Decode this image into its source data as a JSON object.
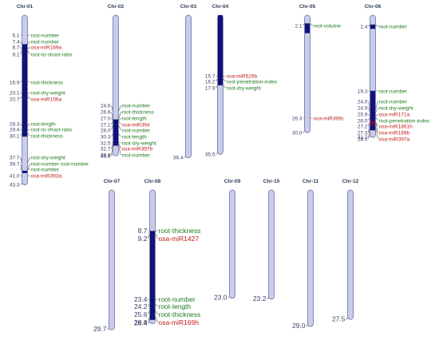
{
  "colors": {
    "background": "#ffffff",
    "chromosome": "#c9cdea",
    "chromosome_outline": "#6a70a8",
    "qtl_region": "#12127a",
    "mirna_region": "#6b0a4a",
    "trait_label": "#1e7a1e",
    "mirna_label": "#c21a1a",
    "position_text": "#3a3f6a",
    "title": "#2b3a55"
  },
  "chromosomes": [
    {
      "name": "Chr-01",
      "end_label": "43.3",
      "length": 43.3,
      "segments": [
        [
          7.4,
          31.0
        ],
        [
          39.7,
          40.3
        ]
      ],
      "markers": [
        {
          "pos": "5.1",
          "label": "root-number",
          "type": "trait"
        },
        {
          "pos": "7.4",
          "label": "root-number",
          "type": "trait"
        },
        {
          "pos": "8.7",
          "label": "osa-miR169a",
          "type": "mirna"
        },
        {
          "pos": "9.1",
          "label": "root-to-shoot-ratio",
          "type": "trait"
        },
        {
          "pos": "16.9",
          "label": "root-thickness",
          "type": "trait"
        },
        {
          "pos": "20.1",
          "label": "root-dry-weight",
          "type": "trait"
        },
        {
          "pos": "20.7",
          "label": "osa-miR156a",
          "type": "mirna"
        },
        {
          "pos": "28.3",
          "label": "root-length",
          "type": "trait"
        },
        {
          "pos": "29.4",
          "label": "root-to-shoot-ratio",
          "type": "trait"
        },
        {
          "pos": "30.1",
          "label": "root-thickness",
          "type": "trait"
        },
        {
          "pos": "37.7",
          "label": "root-dry-weight",
          "type": "trait"
        },
        {
          "pos": "39.7",
          "label": "root-number root-number",
          "type": "trait"
        },
        {
          "pos": "",
          "label": "root-number",
          "type": "trait"
        },
        {
          "pos": "41.0",
          "label": "osa-miR393a",
          "type": "mirna"
        }
      ]
    },
    {
      "name": "Chr-02",
      "end_label": "35.9",
      "length": 35.9,
      "segments": [
        [
          26.6,
          33.3
        ]
      ],
      "markers": [
        {
          "pos": "24.6",
          "label": "root-number",
          "type": "trait"
        },
        {
          "pos": "26.6",
          "label": "root-thickness",
          "type": "trait"
        },
        {
          "pos": "27.0",
          "label": "root-length",
          "type": "trait"
        },
        {
          "pos": "27.1",
          "label": "osa-miR394",
          "type": "mirna"
        },
        {
          "pos": "28.0",
          "label": "root-number",
          "type": "trait"
        },
        {
          "pos": "30.3",
          "label": "root-length",
          "type": "trait"
        },
        {
          "pos": "32.5",
          "label": "root-dry-weight",
          "type": "trait"
        },
        {
          "pos": "32.7",
          "label": "osa-miR397b",
          "type": "mirna"
        },
        {
          "pos": "33.3",
          "label": "root-number",
          "type": "trait"
        }
      ]
    },
    {
      "name": "Chr-03",
      "end_label": "36.4",
      "length": 36.4,
      "segments": [],
      "markers": []
    },
    {
      "name": "Chr-04",
      "end_label": "35.5",
      "length": 35.5,
      "segments": [
        [
          0.0,
          17.9
        ]
      ],
      "markers": [
        {
          "pos": "15.7",
          "label": "osa-miR529b",
          "type": "mirna"
        },
        {
          "pos": "16.2",
          "label": "root-penetration-index",
          "type": "trait"
        },
        {
          "pos": "17.9",
          "label": "root-dry-weight",
          "type": "trait"
        }
      ]
    },
    {
      "name": "Chr-05",
      "end_label": "30.0",
      "length": 30.0,
      "segments": [
        [
          2.1,
          4.6
        ]
      ],
      "markers": [
        {
          "pos": "2.1",
          "label": "root-volume",
          "type": "trait"
        },
        {
          "pos": "26.3",
          "label": "osa-miR399c",
          "type": "mirna"
        }
      ]
    },
    {
      "name": "Chr-06",
      "end_label": "31.2",
      "length": 31.2,
      "segments": [
        [
          2.4,
          3.5
        ],
        [
          19.3,
          29.4
        ]
      ],
      "mirna_segment": [
        27.0,
        28.0
      ],
      "markers": [
        {
          "pos": "2.4",
          "label": "root-number",
          "type": "trait"
        },
        {
          "pos": "19.3",
          "label": "root-number",
          "type": "trait"
        },
        {
          "pos": "24.0",
          "label": "root-number",
          "type": "trait"
        },
        {
          "pos": "24.9",
          "label": "root-dry-weight",
          "type": "trait"
        },
        {
          "pos": "25.9",
          "label": "osa-miR171a",
          "type": "mirna"
        },
        {
          "pos": "26.0",
          "label": "root-penetration-index",
          "type": "trait"
        },
        {
          "pos": "27.2",
          "label": "osa-miR1861h",
          "type": "mirna"
        },
        {
          "pos": "27.3",
          "label": "osa-miR169b",
          "type": "mirna"
        },
        {
          "pos": "28.5",
          "label": "osa-miR397a",
          "type": "mirna"
        }
      ]
    },
    {
      "name": "Chr-07",
      "end_label": "29.7",
      "length": 29.7,
      "segments": [],
      "markers": []
    },
    {
      "name": "Chr-08",
      "end_label": "28.4",
      "length": 28.4,
      "segments": [
        [
          8.7,
          27.6
        ]
      ],
      "markers": [
        {
          "pos": "8.7",
          "label": "root-thickness",
          "type": "trait"
        },
        {
          "pos": "9.2",
          "label": "osa-miR1427",
          "type": "mirna"
        },
        {
          "pos": "23.4",
          "label": "root-number",
          "type": "trait"
        },
        {
          "pos": "24.2",
          "label": "root-length",
          "type": "trait"
        },
        {
          "pos": "25.6",
          "label": "root-thickness",
          "type": "trait"
        },
        {
          "pos": "26.8",
          "label": "osa-miR169h",
          "type": "mirna"
        }
      ]
    },
    {
      "name": "Chr-09",
      "end_label": "23.0",
      "length": 23.0,
      "segments": [],
      "markers": []
    },
    {
      "name": "Chr-10",
      "end_label": "23.2",
      "length": 23.2,
      "segments": [],
      "markers": []
    },
    {
      "name": "Chr-11",
      "end_label": "29.0",
      "length": 29.0,
      "segments": [],
      "markers": []
    },
    {
      "name": "Chr-12",
      "end_label": "27.5",
      "length": 27.5,
      "segments": [],
      "markers": []
    }
  ]
}
